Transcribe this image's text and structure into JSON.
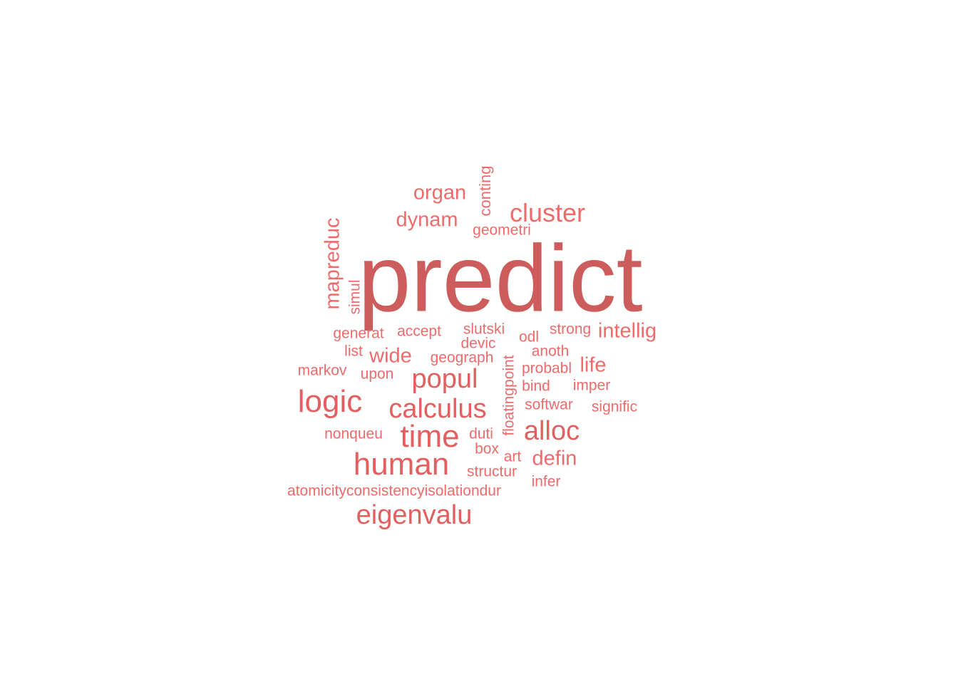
{
  "palette": {
    "dark": "#cd5c5c",
    "mid": "#e36060",
    "light": "#ef6b6b"
  },
  "words": [
    {
      "text": "predict",
      "tone": "dark",
      "vertical": false
    },
    {
      "text": "organ",
      "tone": "light",
      "vertical": false
    },
    {
      "text": "conting",
      "tone": "light",
      "vertical": true
    },
    {
      "text": "cluster",
      "tone": "light",
      "vertical": false
    },
    {
      "text": "dynam",
      "tone": "light",
      "vertical": false
    },
    {
      "text": "geometri",
      "tone": "light",
      "vertical": false
    },
    {
      "text": "mapreduc",
      "tone": "light",
      "vertical": true
    },
    {
      "text": "simul",
      "tone": "light",
      "vertical": true
    },
    {
      "text": "generat",
      "tone": "light",
      "vertical": false
    },
    {
      "text": "accept",
      "tone": "light",
      "vertical": false
    },
    {
      "text": "slutski",
      "tone": "light",
      "vertical": false
    },
    {
      "text": "odl",
      "tone": "light",
      "vertical": false
    },
    {
      "text": "strong",
      "tone": "light",
      "vertical": false
    },
    {
      "text": "intellig",
      "tone": "light",
      "vertical": false
    },
    {
      "text": "devic",
      "tone": "light",
      "vertical": false
    },
    {
      "text": "list",
      "tone": "light",
      "vertical": false
    },
    {
      "text": "wide",
      "tone": "light",
      "vertical": false
    },
    {
      "text": "geograph",
      "tone": "light",
      "vertical": false
    },
    {
      "text": "floatingpoint",
      "tone": "light",
      "vertical": true
    },
    {
      "text": "anoth",
      "tone": "light",
      "vertical": false
    },
    {
      "text": "markov",
      "tone": "light",
      "vertical": false
    },
    {
      "text": "upon",
      "tone": "light",
      "vertical": false
    },
    {
      "text": "popul",
      "tone": "mid",
      "vertical": false
    },
    {
      "text": "probabl",
      "tone": "light",
      "vertical": false
    },
    {
      "text": "life",
      "tone": "light",
      "vertical": false
    },
    {
      "text": "bind",
      "tone": "light",
      "vertical": false
    },
    {
      "text": "imper",
      "tone": "light",
      "vertical": false
    },
    {
      "text": "logic",
      "tone": "mid",
      "vertical": false
    },
    {
      "text": "calculus",
      "tone": "mid",
      "vertical": false
    },
    {
      "text": "softwar",
      "tone": "light",
      "vertical": false
    },
    {
      "text": "signific",
      "tone": "light",
      "vertical": false
    },
    {
      "text": "nonqueu",
      "tone": "light",
      "vertical": false
    },
    {
      "text": "time",
      "tone": "mid",
      "vertical": false
    },
    {
      "text": "duti",
      "tone": "light",
      "vertical": false
    },
    {
      "text": "alloc",
      "tone": "mid",
      "vertical": false
    },
    {
      "text": "box",
      "tone": "light",
      "vertical": false
    },
    {
      "text": "art",
      "tone": "light",
      "vertical": false
    },
    {
      "text": "defin",
      "tone": "light",
      "vertical": false
    },
    {
      "text": "human",
      "tone": "mid",
      "vertical": false
    },
    {
      "text": "structur",
      "tone": "light",
      "vertical": false
    },
    {
      "text": "infer",
      "tone": "light",
      "vertical": false
    },
    {
      "text": "atomicityconsistencyisolationdur",
      "tone": "light",
      "vertical": false
    },
    {
      "text": "eigenvalu",
      "tone": "mid",
      "vertical": false
    }
  ]
}
